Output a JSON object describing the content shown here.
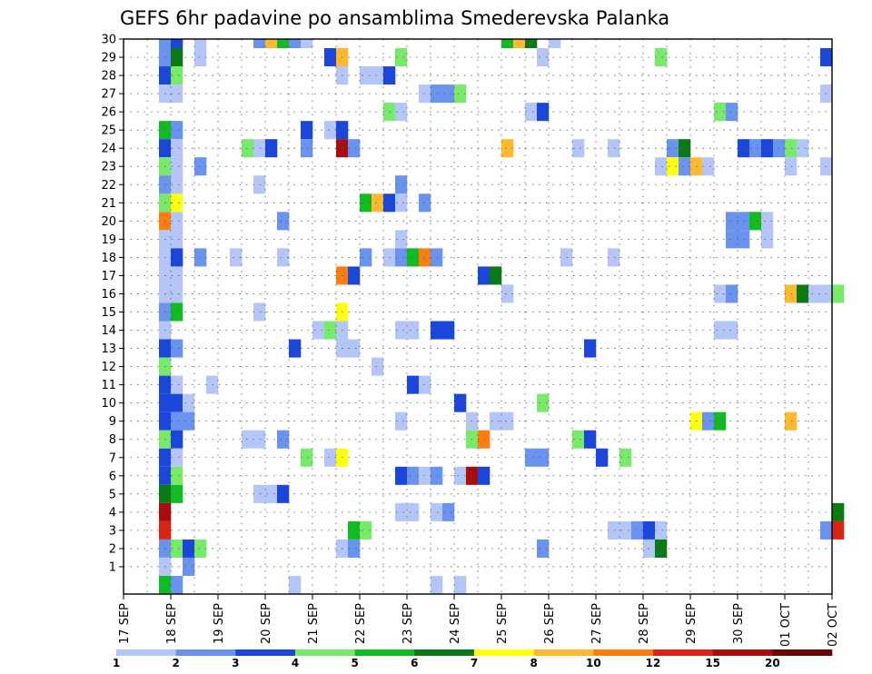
{
  "chart_data": {
    "type": "heatmap",
    "title": "GEFS 6hr padavine po ansamblima Smederevska Palanka",
    "xlabel": "",
    "ylabel": "",
    "x_tick_labels": [
      "17 SEP",
      "18 SEP",
      "19 SEP",
      "20 SEP",
      "21 SEP",
      "22 SEP",
      "23 SEP",
      "24 SEP",
      "25 SEP",
      "26 SEP",
      "27 SEP",
      "28 SEP",
      "29 SEP",
      "30 SEP",
      "01 OCT",
      "02 OCT"
    ],
    "y_tick_labels": [
      "1",
      "2",
      "3",
      "4",
      "5",
      "6",
      "7",
      "8",
      "9",
      "10",
      "11",
      "12",
      "13",
      "14",
      "15",
      "16",
      "17",
      "18",
      "19",
      "20",
      "21",
      "22",
      "23",
      "24",
      "25",
      "26",
      "27",
      "28",
      "29",
      "30"
    ],
    "x_range_steps": [
      0,
      60
    ],
    "step_hours": 6,
    "grid": true,
    "colorbar": {
      "levels": [
        "1",
        "2",
        "3",
        "4",
        "5",
        "6",
        "7",
        "8",
        "10",
        "12",
        "15",
        "20"
      ],
      "colors": [
        "#b3c6f7",
        "#6a93ef",
        "#1b46dc",
        "#78ea6a",
        "#11bb22",
        "#0a7a14",
        "#ffff10",
        "#ffb830",
        "#ff7c0f",
        "#d92314",
        "#a80c0c",
        "#6e0505"
      ]
    },
    "cells": [
      [
        3,
        30,
        1
      ],
      [
        4,
        30,
        2
      ],
      [
        6,
        30,
        0
      ],
      [
        11,
        30,
        1
      ],
      [
        12,
        30,
        7
      ],
      [
        13,
        30,
        4
      ],
      [
        14,
        30,
        1
      ],
      [
        15,
        30,
        0
      ],
      [
        32,
        30,
        4
      ],
      [
        33,
        30,
        7
      ],
      [
        34,
        30,
        5
      ],
      [
        36,
        30,
        0
      ],
      [
        3,
        29,
        1
      ],
      [
        4,
        29,
        5
      ],
      [
        6,
        29,
        0
      ],
      [
        17,
        29,
        2
      ],
      [
        18,
        29,
        7
      ],
      [
        23,
        29,
        3
      ],
      [
        35,
        29,
        0
      ],
      [
        45,
        29,
        3
      ],
      [
        59,
        29,
        2
      ],
      [
        3,
        28,
        2
      ],
      [
        4,
        28,
        3
      ],
      [
        18,
        28,
        0
      ],
      [
        20,
        28,
        0
      ],
      [
        21,
        28,
        0
      ],
      [
        22,
        28,
        2
      ],
      [
        3,
        27,
        0
      ],
      [
        4,
        27,
        0
      ],
      [
        25,
        27,
        0
      ],
      [
        26,
        27,
        1
      ],
      [
        27,
        27,
        1
      ],
      [
        28,
        27,
        3
      ],
      [
        59,
        27,
        0
      ],
      [
        22,
        26,
        3
      ],
      [
        23,
        26,
        0
      ],
      [
        34,
        26,
        0
      ],
      [
        35,
        26,
        2
      ],
      [
        50,
        26,
        3
      ],
      [
        51,
        26,
        1
      ],
      [
        3,
        25,
        4
      ],
      [
        4,
        25,
        1
      ],
      [
        15,
        25,
        2
      ],
      [
        17,
        25,
        0
      ],
      [
        18,
        25,
        2
      ],
      [
        3,
        24,
        2
      ],
      [
        4,
        24,
        0
      ],
      [
        10,
        24,
        3
      ],
      [
        11,
        24,
        0
      ],
      [
        12,
        24,
        2
      ],
      [
        15,
        24,
        1
      ],
      [
        18,
        24,
        10
      ],
      [
        19,
        24,
        1
      ],
      [
        32,
        24,
        7
      ],
      [
        38,
        24,
        0
      ],
      [
        41,
        24,
        0
      ],
      [
        46,
        24,
        1
      ],
      [
        47,
        24,
        5
      ],
      [
        52,
        24,
        2
      ],
      [
        53,
        24,
        1
      ],
      [
        54,
        24,
        2
      ],
      [
        55,
        24,
        1
      ],
      [
        56,
        24,
        3
      ],
      [
        57,
        24,
        0
      ],
      [
        3,
        23,
        3
      ],
      [
        4,
        23,
        0
      ],
      [
        6,
        23,
        1
      ],
      [
        45,
        23,
        0
      ],
      [
        46,
        23,
        6
      ],
      [
        47,
        23,
        1
      ],
      [
        48,
        23,
        7
      ],
      [
        49,
        23,
        0
      ],
      [
        56,
        23,
        0
      ],
      [
        59,
        23,
        0
      ],
      [
        3,
        22,
        1
      ],
      [
        4,
        22,
        0
      ],
      [
        11,
        22,
        0
      ],
      [
        23,
        22,
        1
      ],
      [
        3,
        21,
        3
      ],
      [
        4,
        21,
        6
      ],
      [
        20,
        21,
        4
      ],
      [
        21,
        21,
        7
      ],
      [
        22,
        21,
        2
      ],
      [
        23,
        21,
        0
      ],
      [
        25,
        21,
        1
      ],
      [
        3,
        20,
        8
      ],
      [
        4,
        20,
        0
      ],
      [
        13,
        20,
        1
      ],
      [
        51,
        20,
        1
      ],
      [
        52,
        20,
        1
      ],
      [
        53,
        20,
        4
      ],
      [
        54,
        20,
        0
      ],
      [
        3,
        19,
        0
      ],
      [
        4,
        19,
        0
      ],
      [
        23,
        19,
        0
      ],
      [
        51,
        19,
        1
      ],
      [
        52,
        19,
        1
      ],
      [
        54,
        19,
        0
      ],
      [
        3,
        18,
        0
      ],
      [
        4,
        18,
        2
      ],
      [
        6,
        18,
        1
      ],
      [
        9,
        18,
        0
      ],
      [
        13,
        18,
        0
      ],
      [
        20,
        18,
        1
      ],
      [
        22,
        18,
        0
      ],
      [
        23,
        18,
        1
      ],
      [
        24,
        18,
        4
      ],
      [
        25,
        18,
        8
      ],
      [
        26,
        18,
        1
      ],
      [
        37,
        18,
        0
      ],
      [
        41,
        18,
        0
      ],
      [
        3,
        17,
        0
      ],
      [
        4,
        17,
        0
      ],
      [
        18,
        17,
        8
      ],
      [
        19,
        17,
        2
      ],
      [
        30,
        17,
        2
      ],
      [
        31,
        17,
        5
      ],
      [
        3,
        16,
        0
      ],
      [
        4,
        16,
        0
      ],
      [
        32,
        16,
        0
      ],
      [
        50,
        16,
        0
      ],
      [
        51,
        16,
        1
      ],
      [
        56,
        16,
        7
      ],
      [
        57,
        16,
        5
      ],
      [
        58,
        16,
        0
      ],
      [
        59,
        16,
        0
      ],
      [
        60,
        16,
        3
      ],
      [
        3,
        15,
        1
      ],
      [
        4,
        15,
        4
      ],
      [
        11,
        15,
        0
      ],
      [
        18,
        15,
        6
      ],
      [
        3,
        14,
        0
      ],
      [
        16,
        14,
        0
      ],
      [
        17,
        14,
        3
      ],
      [
        18,
        14,
        0
      ],
      [
        23,
        14,
        0
      ],
      [
        24,
        14,
        0
      ],
      [
        26,
        14,
        2
      ],
      [
        27,
        14,
        2
      ],
      [
        50,
        14,
        0
      ],
      [
        51,
        14,
        0
      ],
      [
        3,
        13,
        2
      ],
      [
        4,
        13,
        1
      ],
      [
        14,
        13,
        2
      ],
      [
        18,
        13,
        0
      ],
      [
        19,
        13,
        0
      ],
      [
        39,
        13,
        2
      ],
      [
        3,
        12,
        3
      ],
      [
        21,
        12,
        0
      ],
      [
        3,
        11,
        2
      ],
      [
        4,
        11,
        0
      ],
      [
        7,
        11,
        0
      ],
      [
        24,
        11,
        2
      ],
      [
        25,
        11,
        0
      ],
      [
        3,
        10,
        2
      ],
      [
        4,
        10,
        2
      ],
      [
        5,
        10,
        0
      ],
      [
        28,
        10,
        2
      ],
      [
        35,
        10,
        3
      ],
      [
        3,
        9,
        2
      ],
      [
        4,
        9,
        1
      ],
      [
        5,
        9,
        1
      ],
      [
        23,
        9,
        0
      ],
      [
        29,
        9,
        0
      ],
      [
        31,
        9,
        0
      ],
      [
        32,
        9,
        0
      ],
      [
        48,
        9,
        6
      ],
      [
        49,
        9,
        1
      ],
      [
        50,
        9,
        4
      ],
      [
        56,
        9,
        7
      ],
      [
        3,
        8,
        3
      ],
      [
        4,
        8,
        2
      ],
      [
        10,
        8,
        0
      ],
      [
        11,
        8,
        0
      ],
      [
        13,
        8,
        1
      ],
      [
        29,
        8,
        3
      ],
      [
        30,
        8,
        8
      ],
      [
        38,
        8,
        3
      ],
      [
        39,
        8,
        2
      ],
      [
        3,
        7,
        2
      ],
      [
        4,
        7,
        0
      ],
      [
        15,
        7,
        3
      ],
      [
        17,
        7,
        0
      ],
      [
        18,
        7,
        6
      ],
      [
        34,
        7,
        1
      ],
      [
        35,
        7,
        1
      ],
      [
        40,
        7,
        2
      ],
      [
        42,
        7,
        3
      ],
      [
        3,
        6,
        2
      ],
      [
        4,
        6,
        3
      ],
      [
        23,
        6,
        2
      ],
      [
        24,
        6,
        1
      ],
      [
        25,
        6,
        0
      ],
      [
        26,
        6,
        1
      ],
      [
        28,
        6,
        0
      ],
      [
        29,
        6,
        10
      ],
      [
        30,
        6,
        2
      ],
      [
        3,
        5,
        5
      ],
      [
        4,
        5,
        4
      ],
      [
        11,
        5,
        0
      ],
      [
        12,
        5,
        0
      ],
      [
        13,
        5,
        2
      ],
      [
        3,
        4,
        10
      ],
      [
        23,
        4,
        0
      ],
      [
        24,
        4,
        0
      ],
      [
        26,
        4,
        0
      ],
      [
        27,
        4,
        1
      ],
      [
        60,
        4,
        5
      ],
      [
        3,
        3,
        9
      ],
      [
        19,
        3,
        4
      ],
      [
        20,
        3,
        3
      ],
      [
        41,
        3,
        0
      ],
      [
        42,
        3,
        0
      ],
      [
        43,
        3,
        1
      ],
      [
        44,
        3,
        2
      ],
      [
        45,
        3,
        0
      ],
      [
        59,
        3,
        1
      ],
      [
        60,
        3,
        9
      ],
      [
        3,
        2,
        1
      ],
      [
        4,
        2,
        3
      ],
      [
        5,
        2,
        2
      ],
      [
        6,
        2,
        3
      ],
      [
        18,
        2,
        0
      ],
      [
        19,
        2,
        1
      ],
      [
        35,
        2,
        1
      ],
      [
        44,
        2,
        0
      ],
      [
        45,
        2,
        5
      ],
      [
        3,
        1,
        0
      ],
      [
        5,
        1,
        1
      ],
      [
        3,
        0,
        4
      ],
      [
        4,
        0,
        1
      ],
      [
        14,
        0,
        0
      ],
      [
        26,
        0,
        0
      ],
      [
        28,
        0,
        0
      ]
    ]
  }
}
